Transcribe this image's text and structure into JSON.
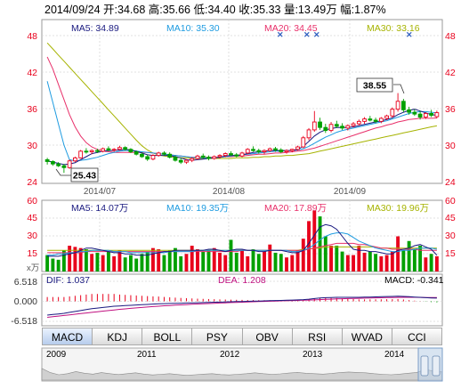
{
  "header": {
    "text": "2014/09/24 开:34.68 高:35.66 低:34.40 收:35.33 量:13.49万 幅:1.87%"
  },
  "price_panel": {
    "ma5_label": "MA5: 34.89",
    "ma10_label": "MA10: 35.30",
    "ma20_label": "MA20: 34.45",
    "ma30_label": "MA30: 33.16",
    "y_ticks": [
      "48",
      "42",
      "36",
      "30",
      "24"
    ],
    "high_callout": "38.55",
    "low_callout": "25.43",
    "x_labels": [
      "2014/07",
      "2014/08",
      "2014/09"
    ],
    "colors": {
      "ma5": "#1a1a80",
      "ma10": "#1e9be0",
      "ma20": "#e8306a",
      "ma30": "#a6b300",
      "up": "#e8001c",
      "down": "#00a000"
    }
  },
  "volume_panel": {
    "ma5_label": "MA5: 14.07万",
    "ma10_label": "MA10: 19.35万",
    "ma20_label": "MA20: 17.89万",
    "ma30_label": "MA30: 19.96万",
    "y_ticks": [
      "60",
      "45",
      "30",
      "15"
    ],
    "unit_label": "x万"
  },
  "macd_panel": {
    "dif_label": "DIF: 1.037",
    "dea_label": "DEA: 1.208",
    "macd_label": "MACD: -0.341",
    "y_ticks": [
      "6.518",
      "0.000",
      "-6.518"
    ]
  },
  "tabs": [
    "MACD",
    "KDJ",
    "BOLL",
    "PSY",
    "OBV",
    "RSI",
    "WVAD",
    "CCI"
  ],
  "active_tab": "MACD",
  "navigator": {
    "year_labels": [
      "2009",
      "2011",
      "2012",
      "2013",
      "2014"
    ]
  },
  "chart_data": [
    {
      "type": "candlestick",
      "ylim": [
        24,
        48
      ],
      "x_labels": [
        "2014/07",
        "2014/08",
        "2014/09"
      ],
      "ohlc": [
        [
          27.6,
          27.9,
          26.8,
          27.3
        ],
        [
          27.3,
          27.5,
          26.6,
          26.9
        ],
        [
          26.9,
          27.2,
          26.4,
          26.6
        ],
        [
          26.6,
          26.9,
          25.43,
          26.3
        ],
        [
          26.3,
          27.6,
          26.1,
          27.4
        ],
        [
          27.4,
          28.1,
          27.2,
          27.9
        ],
        [
          27.9,
          29.2,
          27.8,
          29.0
        ],
        [
          29.0,
          29.5,
          28.6,
          28.9
        ],
        [
          28.9,
          29.3,
          28.5,
          29.1
        ],
        [
          29.1,
          29.4,
          28.7,
          29.0
        ],
        [
          29.0,
          29.6,
          28.8,
          29.4
        ],
        [
          29.4,
          29.8,
          29.0,
          29.2
        ],
        [
          29.2,
          29.5,
          28.9,
          29.3
        ],
        [
          29.3,
          29.9,
          29.1,
          29.6
        ],
        [
          29.6,
          29.8,
          29.1,
          29.3
        ],
        [
          29.3,
          29.5,
          28.7,
          28.9
        ],
        [
          28.9,
          29.1,
          28.3,
          28.5
        ],
        [
          28.5,
          28.8,
          27.9,
          28.1
        ],
        [
          28.1,
          28.4,
          27.4,
          27.7
        ],
        [
          27.7,
          28.5,
          27.5,
          28.3
        ],
        [
          28.3,
          28.9,
          28.1,
          28.7
        ],
        [
          28.7,
          29.0,
          28.3,
          28.5
        ],
        [
          28.5,
          28.8,
          27.8,
          28.0
        ],
        [
          28.0,
          28.3,
          27.3,
          27.5
        ],
        [
          27.5,
          27.9,
          26.9,
          27.2
        ],
        [
          27.2,
          27.7,
          26.9,
          27.5
        ],
        [
          27.5,
          28.0,
          27.2,
          27.8
        ],
        [
          27.8,
          28.4,
          27.6,
          28.2
        ],
        [
          28.2,
          28.6,
          27.8,
          28.0
        ],
        [
          28.0,
          28.3,
          27.5,
          27.8
        ],
        [
          27.8,
          28.3,
          27.6,
          28.1
        ],
        [
          28.1,
          28.5,
          27.8,
          28.3
        ],
        [
          28.3,
          28.8,
          28.0,
          28.6
        ],
        [
          28.6,
          29.0,
          28.2,
          28.4
        ],
        [
          28.4,
          28.7,
          28.0,
          28.2
        ],
        [
          28.2,
          28.9,
          28.0,
          28.7
        ],
        [
          28.7,
          29.5,
          28.5,
          29.3
        ],
        [
          29.3,
          29.8,
          28.9,
          29.1
        ],
        [
          29.1,
          29.4,
          28.6,
          28.9
        ],
        [
          28.9,
          29.3,
          28.5,
          29.1
        ],
        [
          29.1,
          29.6,
          28.9,
          29.4
        ],
        [
          29.4,
          29.7,
          28.9,
          29.2
        ],
        [
          29.2,
          29.5,
          28.7,
          28.9
        ],
        [
          28.9,
          29.3,
          28.6,
          29.1
        ],
        [
          29.1,
          29.4,
          28.8,
          29.3
        ],
        [
          29.3,
          29.9,
          29.1,
          29.7
        ],
        [
          29.7,
          31.5,
          29.5,
          31.2
        ],
        [
          31.2,
          32.8,
          30.8,
          32.5
        ],
        [
          32.5,
          35.6,
          32.2,
          33.8
        ],
        [
          33.8,
          34.5,
          32.5,
          32.9
        ],
        [
          32.9,
          33.5,
          32.0,
          32.4
        ],
        [
          32.4,
          33.8,
          32.1,
          33.4
        ],
        [
          33.4,
          34.0,
          32.8,
          33.1
        ],
        [
          33.1,
          33.6,
          32.5,
          32.8
        ],
        [
          32.8,
          33.4,
          32.4,
          33.2
        ],
        [
          33.2,
          33.8,
          32.9,
          33.5
        ],
        [
          33.5,
          34.2,
          33.2,
          33.9
        ],
        [
          33.9,
          34.6,
          33.5,
          34.3
        ],
        [
          34.3,
          34.8,
          33.9,
          34.1
        ],
        [
          34.1,
          34.5,
          33.6,
          33.9
        ],
        [
          33.9,
          34.6,
          33.6,
          34.4
        ],
        [
          34.4,
          35.0,
          34.1,
          34.8
        ],
        [
          34.8,
          36.2,
          34.5,
          35.9
        ],
        [
          35.9,
          38.55,
          35.5,
          37.2
        ],
        [
          37.2,
          37.6,
          35.4,
          35.8
        ],
        [
          35.8,
          36.3,
          35.0,
          35.4
        ],
        [
          35.4,
          35.9,
          34.8,
          35.1
        ],
        [
          35.1,
          35.6,
          34.2,
          34.6
        ],
        [
          34.6,
          35.4,
          34.3,
          35.2
        ],
        [
          35.2,
          35.8,
          34.6,
          34.9
        ],
        [
          34.68,
          35.66,
          34.4,
          35.33
        ]
      ],
      "ma5": [
        27.4,
        27.2,
        27.0,
        26.8,
        26.9,
        27.1,
        27.6,
        28.1,
        28.6,
        28.8,
        29.0,
        29.1,
        29.1,
        29.2,
        29.3,
        29.2,
        29.0,
        28.7,
        28.4,
        28.3,
        28.3,
        28.3,
        28.3,
        28.1,
        27.9,
        27.6,
        27.5,
        27.6,
        27.7,
        27.8,
        27.9,
        28.0,
        28.2,
        28.3,
        28.3,
        28.4,
        28.6,
        28.8,
        28.9,
        29.0,
        29.1,
        29.1,
        29.1,
        29.1,
        29.1,
        29.3,
        29.8,
        30.6,
        31.5,
        32.1,
        32.5,
        32.7,
        32.9,
        32.9,
        32.9,
        33.0,
        33.2,
        33.4,
        33.6,
        33.8,
        34.0,
        34.2,
        34.5,
        35.0,
        35.4,
        35.7,
        35.9,
        35.6,
        35.3,
        35.0,
        34.9
      ],
      "ma10": [
        40.5,
        37.0,
        33.5,
        30.0,
        27.6,
        27.4,
        27.5,
        27.6,
        27.8,
        28.0,
        28.3,
        28.6,
        28.8,
        29.0,
        29.1,
        29.1,
        29.0,
        28.9,
        28.8,
        28.7,
        28.6,
        28.5,
        28.4,
        28.3,
        28.2,
        28.1,
        28.0,
        27.9,
        27.9,
        27.9,
        27.9,
        28.0,
        28.1,
        28.2,
        28.3,
        28.4,
        28.5,
        28.6,
        28.7,
        28.8,
        28.9,
        29.0,
        29.0,
        29.1,
        29.1,
        29.2,
        29.4,
        29.8,
        30.3,
        30.8,
        31.3,
        31.7,
        32.1,
        32.4,
        32.6,
        32.8,
        33.0,
        33.2,
        33.4,
        33.6,
        33.8,
        34.0,
        34.3,
        34.6,
        34.9,
        35.2,
        35.4,
        35.5,
        35.5,
        35.4,
        35.3
      ],
      "ma20": [
        44.5,
        42.5,
        40.0,
        37.5,
        35.0,
        33.0,
        31.5,
        30.4,
        29.7,
        29.3,
        29.0,
        28.9,
        28.8,
        28.8,
        28.8,
        28.8,
        28.8,
        28.8,
        28.8,
        28.7,
        28.6,
        28.5,
        28.4,
        28.3,
        28.2,
        28.1,
        28.0,
        28.0,
        28.0,
        28.0,
        28.0,
        28.0,
        28.1,
        28.1,
        28.2,
        28.2,
        28.3,
        28.4,
        28.5,
        28.5,
        28.6,
        28.7,
        28.7,
        28.8,
        28.9,
        29.0,
        29.1,
        29.3,
        29.5,
        29.8,
        30.1,
        30.4,
        30.7,
        31.0,
        31.3,
        31.6,
        31.9,
        32.2,
        32.5,
        32.8,
        33.0,
        33.3,
        33.5,
        33.8,
        34.0,
        34.2,
        34.3,
        34.4,
        34.4,
        34.4,
        34.45
      ],
      "ma30": [
        46.8,
        45.8,
        44.8,
        43.8,
        42.8,
        41.8,
        40.8,
        39.8,
        38.8,
        37.8,
        36.8,
        35.8,
        34.8,
        33.8,
        32.8,
        31.8,
        30.8,
        29.9,
        29.2,
        28.7,
        28.4,
        28.2,
        28.1,
        28.0,
        27.9,
        27.9,
        27.8,
        27.8,
        27.8,
        27.8,
        27.8,
        27.8,
        27.8,
        27.8,
        27.9,
        27.9,
        27.9,
        28.0,
        28.0,
        28.1,
        28.1,
        28.2,
        28.2,
        28.3,
        28.3,
        28.4,
        28.5,
        28.6,
        28.8,
        29.0,
        29.2,
        29.4,
        29.6,
        29.8,
        30.0,
        30.2,
        30.4,
        30.6,
        30.8,
        31.0,
        31.2,
        31.4,
        31.6,
        31.8,
        32.0,
        32.2,
        32.4,
        32.6,
        32.8,
        33.0,
        33.16
      ],
      "title": "",
      "xlabel": "",
      "ylabel": ""
    },
    {
      "type": "bar",
      "ylim": [
        0,
        60
      ],
      "unit": "万",
      "values": [
        14,
        11,
        10,
        18,
        22,
        21,
        20,
        19,
        15,
        16,
        14,
        17,
        13,
        18,
        12,
        14,
        11,
        15,
        17,
        20,
        19,
        14,
        18,
        20,
        13,
        15,
        22,
        19,
        17,
        18,
        20,
        16,
        14,
        27,
        16,
        18,
        13,
        19,
        15,
        17,
        23,
        16,
        15,
        12,
        14,
        18,
        28,
        43,
        52,
        47,
        30,
        22,
        22,
        17,
        14,
        14,
        22,
        16,
        17,
        15,
        13,
        14,
        17,
        30,
        18,
        26,
        19,
        22,
        12,
        15,
        13
      ],
      "ma5": [
        13,
        13,
        13,
        14,
        15,
        16,
        18,
        20,
        20,
        19,
        18,
        17,
        16,
        16,
        15,
        15,
        14,
        14,
        14,
        15,
        16,
        17,
        17,
        18,
        18,
        18,
        18,
        18,
        18,
        19,
        19,
        18,
        17,
        18,
        19,
        19,
        18,
        18,
        17,
        17,
        18,
        18,
        18,
        17,
        16,
        16,
        18,
        24,
        31,
        38,
        40,
        39,
        36,
        30,
        24,
        19,
        18,
        18,
        17,
        17,
        16,
        15,
        15,
        18,
        19,
        20,
        22,
        23,
        21,
        19,
        14
      ],
      "ma10": [
        14,
        14,
        15,
        15,
        16,
        16,
        17,
        17,
        18,
        18,
        18,
        18,
        17,
        17,
        17,
        16,
        16,
        16,
        16,
        16,
        16,
        16,
        17,
        17,
        17,
        17,
        17,
        18,
        18,
        18,
        18,
        18,
        18,
        18,
        18,
        18,
        18,
        18,
        18,
        18,
        18,
        18,
        18,
        18,
        17,
        17,
        18,
        20,
        23,
        27,
        30,
        32,
        33,
        33,
        32,
        29,
        26,
        24,
        22,
        20,
        19,
        18,
        17,
        17,
        18,
        18,
        19,
        20,
        20,
        20,
        19
      ],
      "ma20": [
        16,
        16,
        16,
        16,
        16,
        16,
        16,
        17,
        17,
        17,
        17,
        17,
        17,
        17,
        17,
        17,
        17,
        17,
        17,
        17,
        17,
        17,
        17,
        17,
        17,
        17,
        17,
        17,
        17,
        17,
        17,
        17,
        17,
        17,
        17,
        18,
        18,
        18,
        18,
        18,
        18,
        18,
        18,
        18,
        18,
        18,
        18,
        19,
        20,
        21,
        22,
        23,
        24,
        24,
        24,
        24,
        23,
        23,
        22,
        21,
        20,
        20,
        19,
        19,
        19,
        19,
        19,
        18,
        18,
        18,
        18
      ],
      "ma30": [
        18,
        18,
        18,
        18,
        18,
        18,
        18,
        18,
        18,
        18,
        18,
        18,
        18,
        18,
        18,
        18,
        18,
        18,
        18,
        18,
        18,
        18,
        18,
        18,
        18,
        18,
        18,
        18,
        18,
        18,
        18,
        18,
        18,
        18,
        18,
        18,
        18,
        18,
        18,
        18,
        18,
        18,
        18,
        18,
        18,
        18,
        19,
        19,
        20,
        20,
        21,
        21,
        21,
        21,
        21,
        21,
        21,
        21,
        21,
        21,
        20,
        20,
        20,
        20,
        20,
        20,
        20,
        20,
        20,
        20,
        20
      ]
    },
    {
      "type": "line",
      "ylim": [
        -6.518,
        6.518
      ],
      "dif": [
        -4.5,
        -4.3,
        -4.1,
        -3.9,
        -3.6,
        -3.3,
        -3.0,
        -2.7,
        -2.4,
        -2.2,
        -2.0,
        -1.8,
        -1.6,
        -1.5,
        -1.4,
        -1.3,
        -1.2,
        -1.1,
        -1.0,
        -0.9,
        -0.8,
        -0.75,
        -0.7,
        -0.65,
        -0.6,
        -0.55,
        -0.5,
        -0.45,
        -0.4,
        -0.35,
        -0.3,
        -0.25,
        -0.2,
        -0.15,
        -0.1,
        -0.05,
        0.0,
        0.05,
        0.1,
        0.15,
        0.2,
        0.25,
        0.3,
        0.35,
        0.4,
        0.45,
        0.55,
        0.7,
        0.9,
        1.1,
        1.2,
        1.25,
        1.3,
        1.3,
        1.3,
        1.3,
        1.3,
        1.35,
        1.4,
        1.45,
        1.5,
        1.55,
        1.6,
        1.65,
        1.6,
        1.5,
        1.4,
        1.3,
        1.2,
        1.1,
        1.037
      ],
      "dea": [
        -5.2,
        -5.0,
        -4.8,
        -4.6,
        -4.4,
        -4.2,
        -4.0,
        -3.8,
        -3.6,
        -3.4,
        -3.2,
        -3.0,
        -2.8,
        -2.6,
        -2.45,
        -2.3,
        -2.15,
        -2.0,
        -1.85,
        -1.7,
        -1.58,
        -1.46,
        -1.35,
        -1.25,
        -1.15,
        -1.06,
        -0.97,
        -0.88,
        -0.8,
        -0.72,
        -0.64,
        -0.56,
        -0.49,
        -0.42,
        -0.35,
        -0.28,
        -0.21,
        -0.15,
        -0.09,
        -0.03,
        0.03,
        0.09,
        0.14,
        0.19,
        0.24,
        0.29,
        0.34,
        0.4,
        0.47,
        0.55,
        0.63,
        0.7,
        0.77,
        0.83,
        0.89,
        0.94,
        0.99,
        1.04,
        1.09,
        1.13,
        1.17,
        1.21,
        1.25,
        1.28,
        1.3,
        1.3,
        1.29,
        1.27,
        1.25,
        1.23,
        1.208
      ]
    }
  ]
}
